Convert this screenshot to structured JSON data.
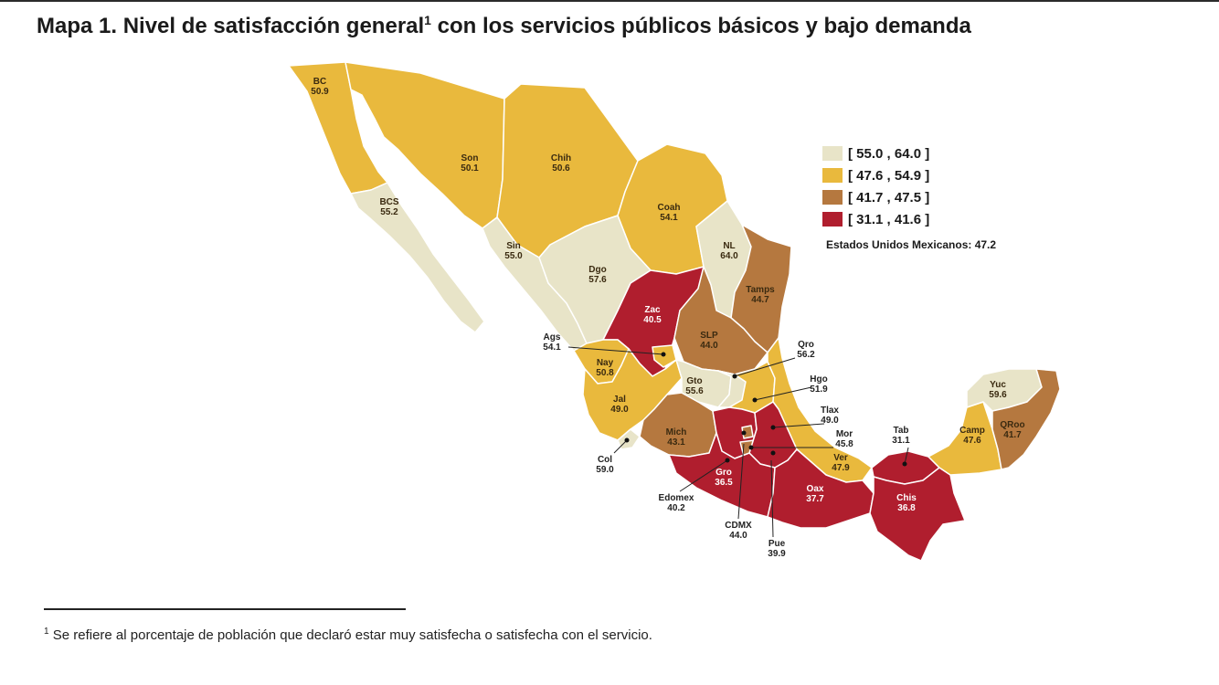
{
  "title": "Mapa 1. Nivel de satisfacción general",
  "title_sup": "1",
  "title_rest": " con los servicios públicos básicos y bajo demanda",
  "colors": {
    "c1": "#e8e4c8",
    "c2": "#e9b93d",
    "c3": "#b5783f",
    "c4": "#b01e2e"
  },
  "legend": [
    {
      "label": "[ 55.0 , 64.0 ]",
      "color": "#e8e4c8"
    },
    {
      "label": "[ 47.6 , 54.9 ]",
      "color": "#e9b93d"
    },
    {
      "label": "[ 41.7 , 47.5 ]",
      "color": "#b5783f"
    },
    {
      "label": "[ 31.1 , 41.6 ]",
      "color": "#b01e2e"
    }
  ],
  "national_label": "Estados Unidos Mexicanos:  47.2",
  "states": [
    {
      "abbr": "BC",
      "value": "50.9",
      "class": "c2"
    },
    {
      "abbr": "BCS",
      "value": "55.2",
      "class": "c1"
    },
    {
      "abbr": "Son",
      "value": "50.1",
      "class": "c2"
    },
    {
      "abbr": "Chih",
      "value": "50.6",
      "class": "c2"
    },
    {
      "abbr": "Coah",
      "value": "54.1",
      "class": "c2"
    },
    {
      "abbr": "NL",
      "value": "64.0",
      "class": "c1"
    },
    {
      "abbr": "Tamps",
      "value": "44.7",
      "class": "c3"
    },
    {
      "abbr": "Sin",
      "value": "55.0",
      "class": "c1"
    },
    {
      "abbr": "Dgo",
      "value": "57.6",
      "class": "c1"
    },
    {
      "abbr": "Zac",
      "value": "40.5",
      "class": "c4"
    },
    {
      "abbr": "SLP",
      "value": "44.0",
      "class": "c3"
    },
    {
      "abbr": "Ags",
      "value": "54.1",
      "class": "c2"
    },
    {
      "abbr": "Nay",
      "value": "50.8",
      "class": "c2"
    },
    {
      "abbr": "Jal",
      "value": "49.0",
      "class": "c2"
    },
    {
      "abbr": "Col",
      "value": "59.0",
      "class": "c1"
    },
    {
      "abbr": "Mich",
      "value": "43.1",
      "class": "c3"
    },
    {
      "abbr": "Gto",
      "value": "55.6",
      "class": "c1"
    },
    {
      "abbr": "Qro",
      "value": "56.2",
      "class": "c1"
    },
    {
      "abbr": "Hgo",
      "value": "51.9",
      "class": "c2"
    },
    {
      "abbr": "Tlax",
      "value": "49.0",
      "class": "c2"
    },
    {
      "abbr": "Mor",
      "value": "45.8",
      "class": "c3"
    },
    {
      "abbr": "Edomex",
      "value": "40.2",
      "class": "c4"
    },
    {
      "abbr": "CDMX",
      "value": "44.0",
      "class": "c3"
    },
    {
      "abbr": "Pue",
      "value": "39.9",
      "class": "c4"
    },
    {
      "abbr": "Gro",
      "value": "36.5",
      "class": "c4"
    },
    {
      "abbr": "Oax",
      "value": "37.7",
      "class": "c4"
    },
    {
      "abbr": "Ver",
      "value": "47.9",
      "class": "c2"
    },
    {
      "abbr": "Tab",
      "value": "31.1",
      "class": "c4"
    },
    {
      "abbr": "Chis",
      "value": "36.8",
      "class": "c4"
    },
    {
      "abbr": "Camp",
      "value": "47.6",
      "class": "c2"
    },
    {
      "abbr": "Yuc",
      "value": "59.6",
      "class": "c1"
    },
    {
      "abbr": "QRoo",
      "value": "41.7",
      "class": "c3"
    }
  ],
  "footnote_sup": "1",
  "footnote": " Se refiere al porcentaje de población que declaró estar muy satisfecha o satisfecha con el servicio."
}
